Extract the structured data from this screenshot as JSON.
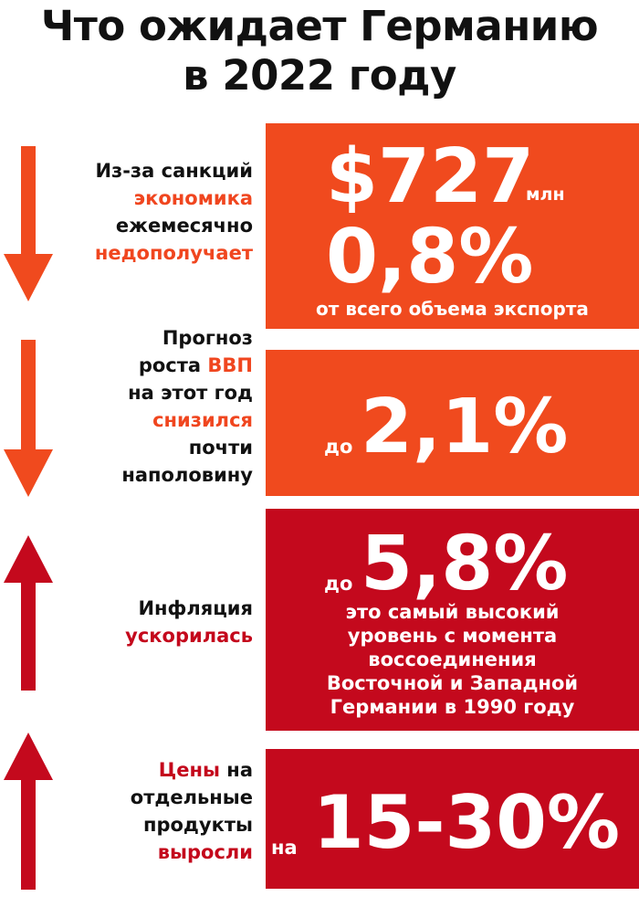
{
  "title": {
    "line1": "Что ожидает Германию",
    "line2": "в 2022 году"
  },
  "colors": {
    "orange": "#f04a1e",
    "red": "#c4091d",
    "text": "#111111"
  },
  "icons": [
    "arrow-down-icon",
    "arrow-down-icon",
    "arrow-up-icon",
    "arrow-up-icon"
  ],
  "block1": {
    "label": [
      "Из-за санкций",
      "экономика",
      "ежемесячно",
      "недополучает"
    ],
    "amount": "$727",
    "amount_unit": "млн",
    "percent": "0,8%",
    "desc": "от всего объема экспорта"
  },
  "block2": {
    "label": [
      "Прогноз",
      "роста ",
      "ВВП",
      "на этот год",
      "снизился",
      "почти",
      "наполовину"
    ],
    "prefix": "до",
    "value": "2,1%"
  },
  "block3": {
    "label": [
      "Инфляция",
      "ускорилась"
    ],
    "prefix": "до",
    "value": "5,8%",
    "desc": [
      "это самый высокий",
      "уровень с момента",
      "воссоединения",
      "Восточной и Западной",
      "Германии в 1990 году"
    ]
  },
  "block4": {
    "label": [
      "Цены",
      " на",
      "отдельные",
      "продукты",
      "выросли"
    ],
    "prefix": "на",
    "value": "15-30%"
  }
}
